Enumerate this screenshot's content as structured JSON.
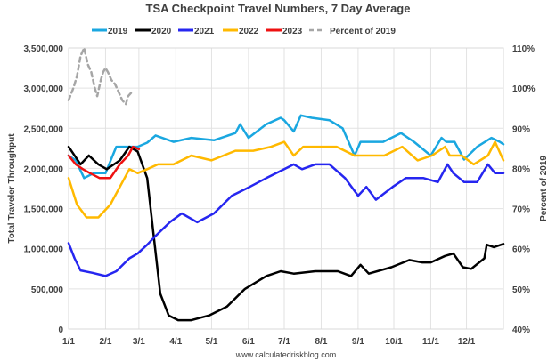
{
  "chart_data": {
    "type": "line",
    "title": "TSA Checkpoint Travel Numbers, 7 Day Average",
    "xlabel": "",
    "ylabel": "Total Traveler Throughput",
    "y2label": "Percent of 2019",
    "source": "www.calculatedriskblog.com",
    "ylim": [
      0,
      3500000
    ],
    "y2lim": [
      40,
      110
    ],
    "xlim": [
      0,
      365
    ],
    "grid": true,
    "legend_position": "top",
    "x_ticks": [
      {
        "day": 0,
        "label": "1/1"
      },
      {
        "day": 31,
        "label": "2/1"
      },
      {
        "day": 59,
        "label": "3/1"
      },
      {
        "day": 90,
        "label": "4/1"
      },
      {
        "day": 120,
        "label": "5/1"
      },
      {
        "day": 151,
        "label": "6/1"
      },
      {
        "day": 181,
        "label": "7/1"
      },
      {
        "day": 212,
        "label": "8/1"
      },
      {
        "day": 243,
        "label": "9/1"
      },
      {
        "day": 273,
        "label": "10/1"
      },
      {
        "day": 304,
        "label": "11/1"
      },
      {
        "day": 334,
        "label": "12/1"
      }
    ],
    "y_ticks": [
      {
        "value": 0,
        "label": "0"
      },
      {
        "value": 500000,
        "label": "500,000"
      },
      {
        "value": 1000000,
        "label": "1,000,000"
      },
      {
        "value": 1500000,
        "label": "1,500,000"
      },
      {
        "value": 2000000,
        "label": "2,000,000"
      },
      {
        "value": 2500000,
        "label": "2,500,000"
      },
      {
        "value": 3000000,
        "label": "3,000,000"
      },
      {
        "value": 3500000,
        "label": "3,500,000"
      }
    ],
    "y2_ticks": [
      {
        "value": 40,
        "label": "40%"
      },
      {
        "value": 50,
        "label": "50%"
      },
      {
        "value": 60,
        "label": "60%"
      },
      {
        "value": 70,
        "label": "70%"
      },
      {
        "value": 80,
        "label": "80%"
      },
      {
        "value": 90,
        "label": "90%"
      },
      {
        "value": 100,
        "label": "100%"
      },
      {
        "value": 110,
        "label": "110%"
      }
    ],
    "series": [
      {
        "name": "2019",
        "color": "#1aa7e0",
        "axis": "left",
        "dash": false,
        "points": [
          [
            0,
            2160000
          ],
          [
            6,
            2100000
          ],
          [
            13,
            1880000
          ],
          [
            21,
            1940000
          ],
          [
            31,
            1940000
          ],
          [
            40,
            2270000
          ],
          [
            51,
            2270000
          ],
          [
            58,
            2270000
          ],
          [
            66,
            2320000
          ],
          [
            73,
            2410000
          ],
          [
            88,
            2330000
          ],
          [
            103,
            2380000
          ],
          [
            122,
            2350000
          ],
          [
            140,
            2440000
          ],
          [
            144,
            2550000
          ],
          [
            151,
            2380000
          ],
          [
            166,
            2550000
          ],
          [
            178,
            2630000
          ],
          [
            181,
            2600000
          ],
          [
            189,
            2460000
          ],
          [
            195,
            2660000
          ],
          [
            204,
            2630000
          ],
          [
            219,
            2600000
          ],
          [
            230,
            2500000
          ],
          [
            240,
            2160000
          ],
          [
            245,
            2330000
          ],
          [
            264,
            2330000
          ],
          [
            279,
            2440000
          ],
          [
            290,
            2330000
          ],
          [
            304,
            2160000
          ],
          [
            313,
            2380000
          ],
          [
            317,
            2330000
          ],
          [
            324,
            2330000
          ],
          [
            332,
            2110000
          ],
          [
            343,
            2270000
          ],
          [
            355,
            2380000
          ],
          [
            362,
            2330000
          ],
          [
            365,
            2300000
          ]
        ]
      },
      {
        "name": "2020",
        "color": "#000000",
        "axis": "left",
        "dash": false,
        "points": [
          [
            0,
            2270000
          ],
          [
            10,
            2050000
          ],
          [
            17,
            2160000
          ],
          [
            25,
            2050000
          ],
          [
            32,
            1990000
          ],
          [
            43,
            2100000
          ],
          [
            51,
            2270000
          ],
          [
            58,
            2210000
          ],
          [
            66,
            1880000
          ],
          [
            71,
            1220000
          ],
          [
            77,
            440000
          ],
          [
            84,
            170000
          ],
          [
            92,
            110000
          ],
          [
            103,
            110000
          ],
          [
            118,
            170000
          ],
          [
            133,
            280000
          ],
          [
            148,
            500000
          ],
          [
            166,
            660000
          ],
          [
            178,
            720000
          ],
          [
            189,
            690000
          ],
          [
            207,
            720000
          ],
          [
            226,
            720000
          ],
          [
            237,
            660000
          ],
          [
            245,
            800000
          ],
          [
            252,
            690000
          ],
          [
            271,
            770000
          ],
          [
            286,
            860000
          ],
          [
            297,
            830000
          ],
          [
            304,
            830000
          ],
          [
            316,
            910000
          ],
          [
            323,
            940000
          ],
          [
            331,
            770000
          ],
          [
            338,
            750000
          ],
          [
            349,
            880000
          ],
          [
            351,
            1050000
          ],
          [
            357,
            1020000
          ],
          [
            365,
            1060000
          ]
        ]
      },
      {
        "name": "2021",
        "color": "#2626f0",
        "axis": "left",
        "dash": false,
        "points": [
          [
            0,
            1070000
          ],
          [
            5,
            880000
          ],
          [
            10,
            730000
          ],
          [
            20,
            700000
          ],
          [
            31,
            660000
          ],
          [
            40,
            720000
          ],
          [
            51,
            880000
          ],
          [
            58,
            940000
          ],
          [
            66,
            1050000
          ],
          [
            73,
            1160000
          ],
          [
            85,
            1330000
          ],
          [
            95,
            1440000
          ],
          [
            108,
            1330000
          ],
          [
            122,
            1440000
          ],
          [
            137,
            1660000
          ],
          [
            152,
            1770000
          ],
          [
            166,
            1880000
          ],
          [
            181,
            1990000
          ],
          [
            189,
            2050000
          ],
          [
            196,
            1990000
          ],
          [
            207,
            2050000
          ],
          [
            219,
            2050000
          ],
          [
            232,
            1880000
          ],
          [
            243,
            1660000
          ],
          [
            250,
            1770000
          ],
          [
            258,
            1610000
          ],
          [
            272,
            1770000
          ],
          [
            283,
            1880000
          ],
          [
            298,
            1880000
          ],
          [
            310,
            1830000
          ],
          [
            318,
            2050000
          ],
          [
            323,
            1940000
          ],
          [
            332,
            1830000
          ],
          [
            343,
            1830000
          ],
          [
            352,
            2050000
          ],
          [
            358,
            1940000
          ],
          [
            365,
            1940000
          ]
        ]
      },
      {
        "name": "2022",
        "color": "#ffb900",
        "axis": "left",
        "dash": false,
        "points": [
          [
            0,
            1880000
          ],
          [
            7,
            1550000
          ],
          [
            15,
            1390000
          ],
          [
            25,
            1390000
          ],
          [
            35,
            1550000
          ],
          [
            43,
            1770000
          ],
          [
            51,
            1990000
          ],
          [
            58,
            1940000
          ],
          [
            66,
            1990000
          ],
          [
            75,
            2050000
          ],
          [
            88,
            2050000
          ],
          [
            103,
            2160000
          ],
          [
            120,
            2100000
          ],
          [
            140,
            2220000
          ],
          [
            155,
            2220000
          ],
          [
            170,
            2270000
          ],
          [
            181,
            2330000
          ],
          [
            189,
            2160000
          ],
          [
            197,
            2270000
          ],
          [
            210,
            2270000
          ],
          [
            225,
            2270000
          ],
          [
            240,
            2160000
          ],
          [
            252,
            2160000
          ],
          [
            265,
            2160000
          ],
          [
            280,
            2270000
          ],
          [
            293,
            2100000
          ],
          [
            305,
            2160000
          ],
          [
            316,
            2270000
          ],
          [
            320,
            2160000
          ],
          [
            330,
            2160000
          ],
          [
            340,
            2050000
          ],
          [
            352,
            2160000
          ],
          [
            358,
            2330000
          ],
          [
            365,
            2100000
          ]
        ]
      },
      {
        "name": "2023",
        "color": "#ee1111",
        "axis": "left",
        "dash": false,
        "points": [
          [
            0,
            2160000
          ],
          [
            6,
            2050000
          ],
          [
            12,
            1990000
          ],
          [
            18,
            1940000
          ],
          [
            26,
            1880000
          ],
          [
            35,
            1880000
          ],
          [
            43,
            2050000
          ],
          [
            50,
            2160000
          ],
          [
            54,
            2270000
          ],
          [
            59,
            2240000
          ]
        ]
      },
      {
        "name": "Percent of 2019",
        "color": "#a6a6a6",
        "axis": "right",
        "dash": true,
        "points": [
          [
            0,
            97
          ],
          [
            4,
            100
          ],
          [
            7,
            103
          ],
          [
            10,
            108
          ],
          [
            13,
            110
          ],
          [
            16,
            106
          ],
          [
            19,
            104
          ],
          [
            22,
            100
          ],
          [
            24,
            98
          ],
          [
            27,
            102
          ],
          [
            29,
            104
          ],
          [
            31,
            105
          ],
          [
            33,
            104
          ],
          [
            36,
            102
          ],
          [
            39,
            101
          ],
          [
            42,
            99
          ],
          [
            45,
            97
          ],
          [
            48,
            96
          ],
          [
            50,
            98
          ],
          [
            53,
            99
          ]
        ]
      }
    ]
  }
}
